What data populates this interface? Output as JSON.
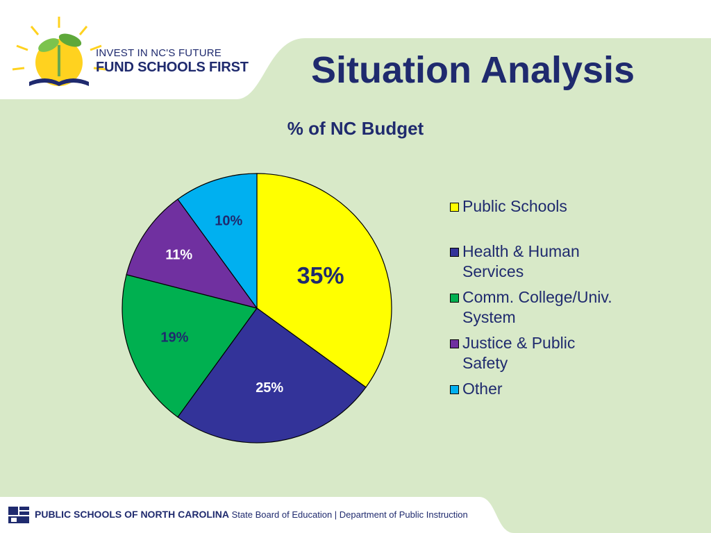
{
  "logo": {
    "line1": "INVEST IN NC'S FUTURE",
    "line2": "FUND SCHOOLS FIRST"
  },
  "page_title": "Situation Analysis",
  "chart_data": {
    "type": "pie",
    "title": "% of NC Budget",
    "categories": [
      "Public Schools",
      "Health & Human Services",
      "Comm. College/Univ. System",
      "Justice & Public Safety",
      "Other"
    ],
    "values": [
      35,
      25,
      19,
      11,
      10
    ],
    "labels": [
      "35%",
      "25%",
      "19%",
      "11%",
      "10%"
    ],
    "colors": [
      "#ffff00",
      "#333399",
      "#00b050",
      "#7030a0",
      "#00b0f0"
    ],
    "label_colors": [
      "#1f2a6e",
      "#ffffff",
      "#1f2a6e",
      "#ffffff",
      "#1f2a6e"
    ],
    "legend": "right"
  },
  "legend_lines": [
    [
      "Public Schools"
    ],
    [
      "Health & Human",
      "Services"
    ],
    [
      "Comm. College/Univ.",
      "System"
    ],
    [
      "Justice & Public",
      "Safety"
    ],
    [
      "Other"
    ]
  ],
  "footer": {
    "org": "PUBLIC SCHOOLS OF NORTH CAROLINA",
    "rest": "State Board of Education  |  Department of Public Instruction"
  }
}
